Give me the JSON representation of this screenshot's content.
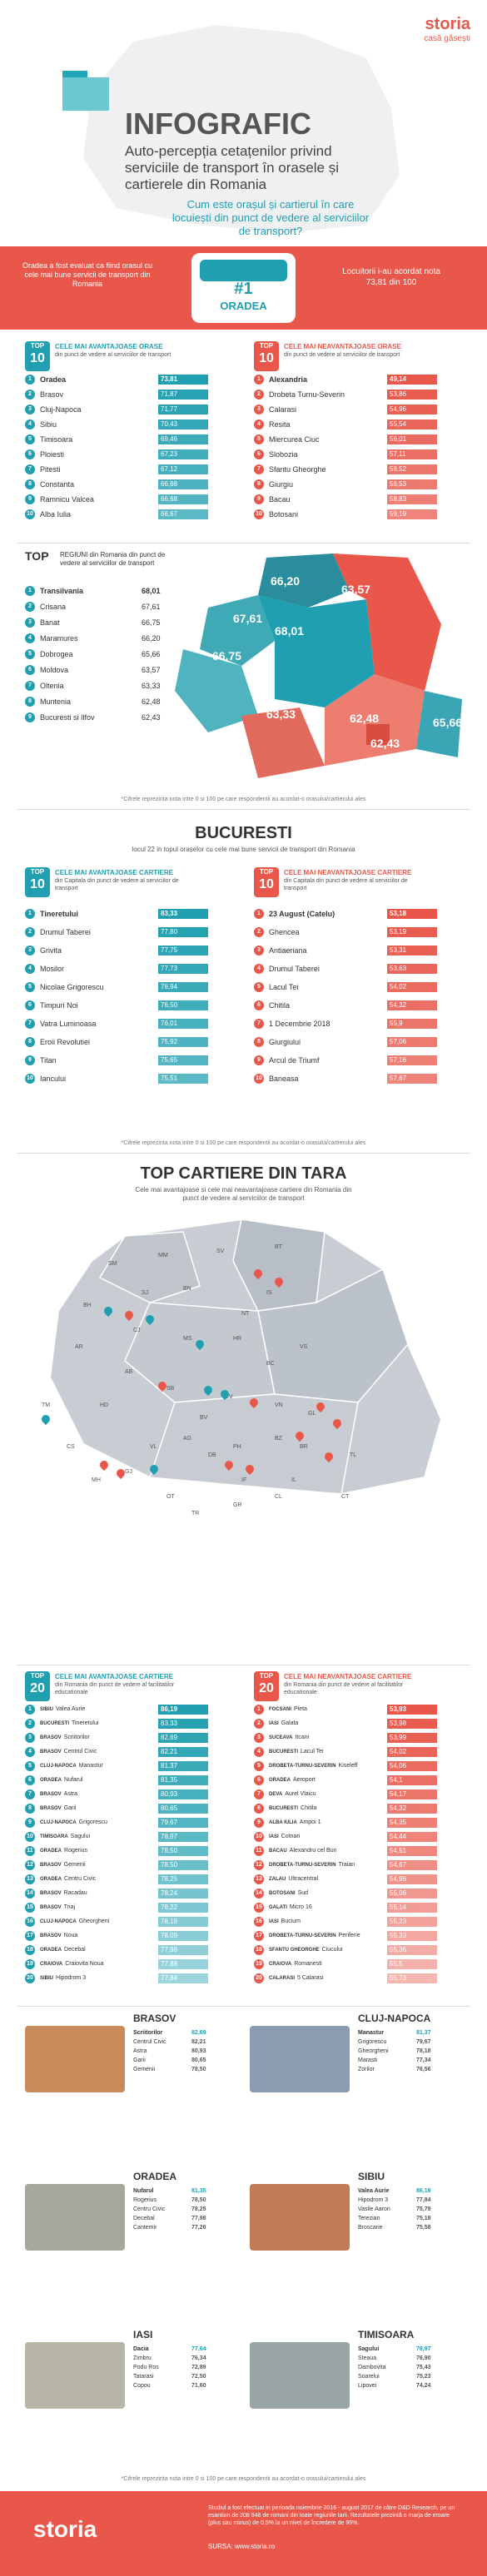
{
  "logo": {
    "brand": "storia",
    "tagline": "casă găsești"
  },
  "header": {
    "title": "INFOGRAFIC",
    "subtitle": "Auto-percepția cetațenilor privind serviciile de transport în orasele și cartierele din Romania",
    "question": "Cum este orașul și cartierul în care locuiești din punct de vedere al serviciilor de transport?"
  },
  "banner": {
    "left": "Oradea a fost evaluat ca fiind orasul cu cele mai bune servicii de transport din Romania",
    "rank": "#1",
    "city": "ORADEA",
    "right": "Locuitorii i-au acordat nota 73,81 din 100"
  },
  "top_label": "TOP",
  "ten": "10",
  "twenty": "20",
  "cities_best": {
    "title": "CELE MAI AVANTAJOASE ORASE",
    "sub": "din punct de vedere al serviciilor de transport",
    "items": [
      {
        "n": "1",
        "name": "Oradea",
        "v": "73,81"
      },
      {
        "n": "2",
        "name": "Brasov",
        "v": "71,87"
      },
      {
        "n": "3",
        "name": "Cluj-Napoca",
        "v": "71,77"
      },
      {
        "n": "4",
        "name": "Sibiu",
        "v": "70,43"
      },
      {
        "n": "5",
        "name": "Timisoara",
        "v": "69,46"
      },
      {
        "n": "6",
        "name": "Ploiesti",
        "v": "67,23"
      },
      {
        "n": "7",
        "name": "Pitesti",
        "v": "67,12"
      },
      {
        "n": "8",
        "name": "Constanta",
        "v": "66,68"
      },
      {
        "n": "9",
        "name": "Ramnicu Valcea",
        "v": "66,68"
      },
      {
        "n": "10",
        "name": "Alba Iulia",
        "v": "66,67"
      }
    ]
  },
  "cities_worst": {
    "title": "CELE MAI NEAVANTAJOASE ORASE",
    "sub": "din punct de vedere al serviciilor de transport",
    "items": [
      {
        "n": "1",
        "name": "Alexandria",
        "v": "49,14"
      },
      {
        "n": "2",
        "name": "Drobeta Turnu-Severin",
        "v": "53,86"
      },
      {
        "n": "3",
        "name": "Calarasi",
        "v": "54,96"
      },
      {
        "n": "4",
        "name": "Resita",
        "v": "55,54"
      },
      {
        "n": "5",
        "name": "Miercurea Ciuc",
        "v": "56,01"
      },
      {
        "n": "6",
        "name": "Slobozia",
        "v": "57,11"
      },
      {
        "n": "7",
        "name": "Sfantu Gheorghe",
        "v": "58,52"
      },
      {
        "n": "8",
        "name": "Giurgiu",
        "v": "58,53"
      },
      {
        "n": "9",
        "name": "Bacau",
        "v": "58,83"
      },
      {
        "n": "10",
        "name": "Botosani",
        "v": "59,19"
      }
    ]
  },
  "regions": {
    "title": "REGIUNI din Romania din punct de vedere al serviciilor de transport",
    "items": [
      {
        "n": "1",
        "name": "Transilvania",
        "v": "68,01"
      },
      {
        "n": "2",
        "name": "Crisana",
        "v": "67,61"
      },
      {
        "n": "3",
        "name": "Banat",
        "v": "66,75"
      },
      {
        "n": "4",
        "name": "Maramures",
        "v": "66,20"
      },
      {
        "n": "5",
        "name": "Dobrogea",
        "v": "65,66"
      },
      {
        "n": "6",
        "name": "Moldova",
        "v": "63,57"
      },
      {
        "n": "7",
        "name": "Oltenia",
        "v": "63,33"
      },
      {
        "n": "8",
        "name": "Muntenia",
        "v": "62,48"
      },
      {
        "n": "9",
        "name": "Bucuresti si Ilfov",
        "v": "62,43"
      }
    ],
    "map_values": [
      "66,20",
      "67,61",
      "68,01",
      "63,57",
      "66,75",
      "63,33",
      "62,48",
      "62,43",
      "65,66"
    ]
  },
  "note": "*Cifrele reprezinta nota intre 0 si 100 pe care respondentii au acordat-o orasului/cartierului ales",
  "bucuresti": {
    "title": "BUCURESTI",
    "sub": "locul 22 in topul orașelor cu cele mai bune servicii de transport din Romania",
    "best": {
      "title": "CELE MAI AVANTAJOASE CARTIERE",
      "sub": "din Capitala din punct de vedere al serviciilor de transport",
      "items": [
        {
          "n": "1",
          "name": "Tineretului",
          "v": "83,33"
        },
        {
          "n": "2",
          "name": "Drumul Taberei",
          "v": "77,80"
        },
        {
          "n": "3",
          "name": "Grivita",
          "v": "77,75"
        },
        {
          "n": "4",
          "name": "Mosilor",
          "v": "77,73"
        },
        {
          "n": "5",
          "name": "Nicolae Grigorescu",
          "v": "76,94"
        },
        {
          "n": "6",
          "name": "Timpuri Noi",
          "v": "76,50"
        },
        {
          "n": "7",
          "name": "Vatra Luminoasa",
          "v": "76,01"
        },
        {
          "n": "8",
          "name": "Eroii Revolutiei",
          "v": "75,92"
        },
        {
          "n": "9",
          "name": "Titan",
          "v": "75,65"
        },
        {
          "n": "10",
          "name": "Iancului",
          "v": "75,51"
        }
      ]
    },
    "worst": {
      "title": "CELE MAI NEAVANTAJOASE CARTIERE",
      "sub": "din Capitala din punct de vedere al serviciilor de transport",
      "items": [
        {
          "n": "1",
          "name": "23 August (Catelu)",
          "v": "53,18"
        },
        {
          "n": "2",
          "name": "Ghencea",
          "v": "53,19"
        },
        {
          "n": "3",
          "name": "Antiaeriana",
          "v": "53,31"
        },
        {
          "n": "4",
          "name": "Drumul Taberei",
          "v": "53,63"
        },
        {
          "n": "5",
          "name": "Lacul Tei",
          "v": "54,02"
        },
        {
          "n": "6",
          "name": "Chitila",
          "v": "54,32"
        },
        {
          "n": "7",
          "name": "1 Decembrie 2018",
          "v": "55,9"
        },
        {
          "n": "8",
          "name": "Giurgiului",
          "v": "57,06"
        },
        {
          "n": "9",
          "name": "Arcul de Triumf",
          "v": "57,16"
        },
        {
          "n": "10",
          "name": "Baneasa",
          "v": "57,67"
        }
      ]
    }
  },
  "cartiere": {
    "title": "TOP CARTIERE DIN TARA",
    "sub": "Cele mai avantajoase si cele mai neavantajoase cartiere din Romania din punct de vedere al serviciilor de transport",
    "map_labels": [
      "SM",
      "MM",
      "SV",
      "BT",
      "BH",
      "SJ",
      "BN",
      "IS",
      "NT",
      "AR",
      "CJ",
      "MS",
      "HR",
      "VS",
      "AB",
      "BC",
      "HD",
      "SB",
      "CV",
      "TM",
      "BV",
      "VN",
      "GL",
      "CS",
      "VL",
      "AG",
      "DB",
      "PH",
      "BZ",
      "BR",
      "TL",
      "MH",
      "GJ",
      "IL",
      "OT",
      "GR",
      "TR",
      "CT",
      "CL",
      "IF"
    ],
    "best": {
      "title": "CELE MAI AVANTAJOASE CARTIERE",
      "sub": "din Romania din punct de vedere al facilitatilor educationale",
      "items": [
        {
          "n": "1",
          "c": "SIBIU",
          "name": "Valea Aurie",
          "v": "86,19"
        },
        {
          "n": "2",
          "c": "BUCURESTI",
          "name": "Tineretului",
          "v": "83,33"
        },
        {
          "n": "3",
          "c": "BRASOV",
          "name": "Scriitorilor",
          "v": "82,69"
        },
        {
          "n": "4",
          "c": "BRASOV",
          "name": "Centrul Civic",
          "v": "82,21"
        },
        {
          "n": "5",
          "c": "CLUJ-NAPOCA",
          "name": "Manastur",
          "v": "81,37"
        },
        {
          "n": "6",
          "c": "ORADEA",
          "name": "Nufarul",
          "v": "81,35"
        },
        {
          "n": "7",
          "c": "BRASOV",
          "name": "Astra",
          "v": "80,93"
        },
        {
          "n": "8",
          "c": "BRASOV",
          "name": "Garii",
          "v": "80,65"
        },
        {
          "n": "9",
          "c": "CLUJ-NAPOCA",
          "name": "Grigorescu",
          "v": "79,67"
        },
        {
          "n": "10",
          "c": "TIMISOARA",
          "name": "Sagului",
          "v": "78,97"
        },
        {
          "n": "11",
          "c": "ORADEA",
          "name": "Rogerius",
          "v": "78,50"
        },
        {
          "n": "12",
          "c": "BRASOV",
          "name": "Gemenii",
          "v": "78,50"
        },
        {
          "n": "13",
          "c": "ORADEA",
          "name": "Centru Civic",
          "v": "78,25"
        },
        {
          "n": "14",
          "c": "BRASOV",
          "name": "Racadau",
          "v": "78,24"
        },
        {
          "n": "15",
          "c": "BRASOV",
          "name": "Triaj",
          "v": "78,22"
        },
        {
          "n": "16",
          "c": "CLUJ-NAPOCA",
          "name": "Gheorgheni",
          "v": "78,18"
        },
        {
          "n": "17",
          "c": "BRASOV",
          "name": "Noua",
          "v": "78,09"
        },
        {
          "n": "18",
          "c": "ORADEA",
          "name": "Decebal",
          "v": "77,98"
        },
        {
          "n": "19",
          "c": "CRAIOVA",
          "name": "Craiovita Noua",
          "v": "77,88"
        },
        {
          "n": "20",
          "c": "SIBIU",
          "name": "Hipodrom 3",
          "v": "77,84"
        }
      ]
    },
    "worst": {
      "title": "CELE MAI NEAVANTAJOASE CARTIERE",
      "sub": "din Romania din punct de vedere al facilitatilor educationale",
      "items": [
        {
          "n": "1",
          "c": "FOCSANI",
          "name": "Pieta",
          "v": "53,93"
        },
        {
          "n": "2",
          "c": "IASI",
          "name": "Galata",
          "v": "53,98"
        },
        {
          "n": "3",
          "c": "SUCEAVA",
          "name": "Itcani",
          "v": "53,99"
        },
        {
          "n": "4",
          "c": "BUCURESTI",
          "name": "Lacul Tei",
          "v": "54,02"
        },
        {
          "n": "5",
          "c": "DROBETA-TURNU-SEVERIN",
          "name": "Kiseleff",
          "v": "54,06"
        },
        {
          "n": "6",
          "c": "ORADEA",
          "name": "Aeroport",
          "v": "54,1"
        },
        {
          "n": "7",
          "c": "DEVA",
          "name": "Aurel Vlaicu",
          "v": "54,17"
        },
        {
          "n": "8",
          "c": "BUCURESTI",
          "name": "Chitila",
          "v": "54,32"
        },
        {
          "n": "9",
          "c": "ALBA IULIA",
          "name": "Ampoi 1",
          "v": "54,35"
        },
        {
          "n": "10",
          "c": "IASI",
          "name": "Cotnari",
          "v": "54,44"
        },
        {
          "n": "11",
          "c": "BACAU",
          "name": "Alexandru cel Bun",
          "v": "54,51"
        },
        {
          "n": "12",
          "c": "DROBETA-TURNU-SEVERIN",
          "name": "Traian",
          "v": "54,67"
        },
        {
          "n": "13",
          "c": "ZALAU",
          "name": "Ultracentral",
          "v": "54,96"
        },
        {
          "n": "14",
          "c": "BOTOSANI",
          "name": "Sud",
          "v": "55,06"
        },
        {
          "n": "15",
          "c": "GALATI",
          "name": "Micro 16",
          "v": "55,14"
        },
        {
          "n": "16",
          "c": "IASI",
          "name": "Bucium",
          "v": "55,23"
        },
        {
          "n": "17",
          "c": "DROBETA-TURNU-SEVERIN",
          "name": "Periferie",
          "v": "55,33"
        },
        {
          "n": "18",
          "c": "SFANTU GHEORGHE",
          "name": "Ciucului",
          "v": "55,36"
        },
        {
          "n": "19",
          "c": "CRAIOVA",
          "name": "Romanesti",
          "v": "55,5"
        },
        {
          "n": "20",
          "c": "CALARASI",
          "name": "5 Calarasi",
          "v": "55,73"
        }
      ]
    }
  },
  "city_cards": [
    {
      "name": "BRASOV",
      "rows": [
        [
          "Scriitorilor",
          "82,69"
        ],
        [
          "Centrul Civic",
          "82,21"
        ],
        [
          "Astra",
          "80,93"
        ],
        [
          "Garii",
          "80,65"
        ],
        [
          "Gemenii",
          "78,50"
        ]
      ]
    },
    {
      "name": "CLUJ-NAPOCA",
      "rows": [
        [
          "Manastur",
          "81,37"
        ],
        [
          "Grigorescu",
          "79,67"
        ],
        [
          "Gheorgheni",
          "78,18"
        ],
        [
          "Marasti",
          "77,34"
        ],
        [
          "Zorilor",
          "76,56"
        ]
      ]
    },
    {
      "name": "ORADEA",
      "rows": [
        [
          "Nufarul",
          "81,35"
        ],
        [
          "Rogerius",
          "78,50"
        ],
        [
          "Centru Civic",
          "78,25"
        ],
        [
          "Decebal",
          "77,98"
        ],
        [
          "Cantemir",
          "77,26"
        ]
      ]
    },
    {
      "name": "SIBIU",
      "rows": [
        [
          "Valea Aurie",
          "86,19"
        ],
        [
          "Hipodrom 3",
          "77,84"
        ],
        [
          "Vasile Aaron",
          "75,79"
        ],
        [
          "Terezian",
          "75,18"
        ],
        [
          "Broscarie",
          "75,58"
        ]
      ]
    },
    {
      "name": "IASI",
      "rows": [
        [
          "Dacia",
          "77,64"
        ],
        [
          "Zimbru",
          "76,34"
        ],
        [
          "Podu Ros",
          "72,89"
        ],
        [
          "Tatarasi",
          "72,50"
        ],
        [
          "Copou",
          "71,60"
        ]
      ]
    },
    {
      "name": "TIMISOARA",
      "rows": [
        [
          "Sagului",
          "78,97"
        ],
        [
          "Steaua",
          "76,90"
        ],
        [
          "Dambovita",
          "75,43"
        ],
        [
          "Soarelui",
          "75,23"
        ],
        [
          "Lipovei",
          "74,24"
        ]
      ]
    }
  ],
  "footer": {
    "brand": "storia",
    "text": "Studiul a fost efectuat in perioada noiembrie 2016 - august 2017 de către D&D Research, pe un esantion de 208 948 de romani din toate regiunile tarii. Rezultatele prezintă o marja de eroare (plus sau minus) de 0,5% la un nivel de încredere de 95%.",
    "source": "SURSA: www.storia.ro"
  }
}
